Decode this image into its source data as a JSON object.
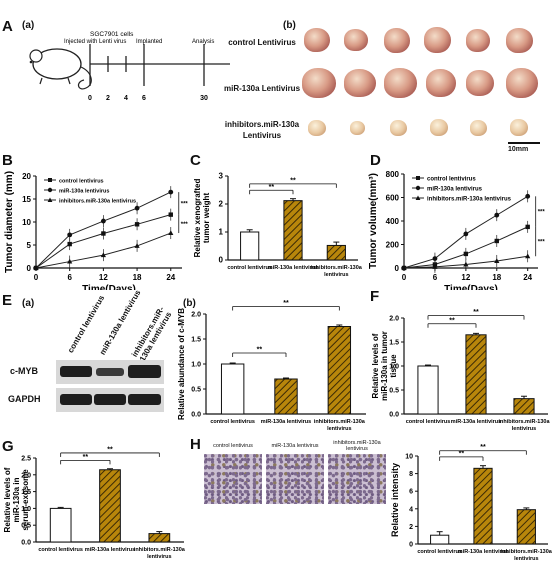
{
  "panel_labels": {
    "A": "A",
    "B": "B",
    "C": "C",
    "D": "D",
    "E": "E",
    "F": "F",
    "G": "G",
    "H": "H"
  },
  "sub_labels": {
    "a": "(a)",
    "b": "(b)"
  },
  "timeline": {
    "cell_line": "SGC7901 cells",
    "step1": "Injected with Lenti virus",
    "step2": "Implanted",
    "step3": "Analysis",
    "ticks": [
      "0",
      "2",
      "4",
      "6",
      "30"
    ]
  },
  "photo": {
    "row1": "control Lentivirus",
    "row2": "miR-130a Lentivirus",
    "row3a": "inhibitors.miR-130a",
    "row3b": "Lentivirus",
    "scale": "10mm"
  },
  "wb": {
    "lanes": [
      "control lentivirus",
      "miR-130a lentivirus",
      "inhibitors.miR-130a lentivirus"
    ],
    "rows": [
      "c-MYB",
      "GAPDH"
    ]
  },
  "sig": "**",
  "sig3": "***",
  "chart_data": [
    {
      "id": "B",
      "type": "line",
      "xlabel": "Time(Days)",
      "ylabel": "Tumor diameter (mm)",
      "x": [
        0,
        6,
        12,
        18,
        24
      ],
      "xlim": [
        0,
        26
      ],
      "ylim": [
        0,
        20
      ],
      "xticks": [
        0,
        6,
        12,
        18,
        24
      ],
      "yticks": [
        0,
        5,
        10,
        15,
        20
      ],
      "series": [
        {
          "name": "control lentivirus",
          "values": [
            0,
            5.2,
            7.5,
            9.5,
            11.6
          ]
        },
        {
          "name": "miR-130a lentivirus",
          "values": [
            0,
            7.2,
            10.2,
            13.0,
            16.5
          ]
        },
        {
          "name": "inhibitors.miR-130a lentivirus",
          "values": [
            0,
            1.4,
            2.8,
            4.8,
            7.6
          ]
        }
      ]
    },
    {
      "id": "C",
      "type": "bar",
      "ylabel": "Relative xenografted tumor weight",
      "categories": [
        "control lentivirus",
        "miR-130a lentivirus",
        "inhibitors.miR-130a lentivirus"
      ],
      "values": [
        1.0,
        2.12,
        0.52
      ],
      "errors": [
        0.08,
        0.07,
        0.12
      ],
      "ylim": [
        0,
        3
      ],
      "yticks": [
        0,
        1,
        2,
        3
      ]
    },
    {
      "id": "D",
      "type": "line",
      "xlabel": "Time(Days)",
      "ylabel": "Tumor volume(mm³)",
      "x": [
        0,
        6,
        12,
        18,
        24
      ],
      "xlim": [
        0,
        26
      ],
      "ylim": [
        0,
        800
      ],
      "xticks": [
        0,
        6,
        12,
        18,
        24
      ],
      "yticks": [
        0,
        200,
        400,
        600,
        800
      ],
      "series": [
        {
          "name": "control lentivirus",
          "values": [
            0,
            30,
            120,
            230,
            350
          ]
        },
        {
          "name": "miR-130a lentivirus",
          "values": [
            0,
            80,
            290,
            450,
            610
          ]
        },
        {
          "name": "inhibitors.miR-130a lentivirus",
          "values": [
            0,
            10,
            30,
            60,
            100
          ]
        }
      ]
    },
    {
      "id": "E",
      "type": "bar",
      "ylabel": "Relative abundance of c-MYB",
      "categories": [
        "control lentivirus",
        "miR-130a lentivirus",
        "inhibitors.miR-130a lentivirus"
      ],
      "values": [
        1.0,
        0.7,
        1.75
      ],
      "errors": [
        0.02,
        0.02,
        0.03
      ],
      "ylim": [
        0,
        2.0
      ],
      "yticks": [
        0.0,
        0.5,
        1.0,
        1.5,
        2.0
      ]
    },
    {
      "id": "F",
      "type": "bar",
      "ylabel": "Relative levels of miR-130a in tumor tissue",
      "categories": [
        "control lentivirus",
        "miR-130a lentivirus",
        "inhibitors.miR-130a lentivirus"
      ],
      "values": [
        1.0,
        1.65,
        0.32
      ],
      "errors": [
        0.02,
        0.03,
        0.05
      ],
      "ylim": [
        0,
        2.0
      ],
      "yticks": [
        0.0,
        0.5,
        1.0,
        1.5,
        2.0
      ]
    },
    {
      "id": "G",
      "type": "bar",
      "ylabel": "Relative levels of miR-130a in serum-exosome",
      "categories": [
        "control lentivirus",
        "miR-130a lentivirus",
        "inhibitors.miR-130a lentivirus"
      ],
      "values": [
        1.0,
        2.15,
        0.25
      ],
      "errors": [
        0.03,
        0.03,
        0.06
      ],
      "ylim": [
        0,
        2.5
      ],
      "yticks": [
        0.0,
        0.5,
        1.0,
        1.5,
        2.0,
        2.5
      ]
    },
    {
      "id": "H",
      "type": "bar",
      "ylabel": "Relative intensity",
      "categories": [
        "control lentivirus",
        "miR-130a lentivirus",
        "inhibitors.miR-130a lentivirus"
      ],
      "values": [
        1.0,
        8.6,
        3.9
      ],
      "errors": [
        0.4,
        0.3,
        0.2
      ],
      "ylim": [
        0,
        10
      ],
      "yticks": [
        0,
        2,
        4,
        6,
        8,
        10
      ]
    }
  ]
}
